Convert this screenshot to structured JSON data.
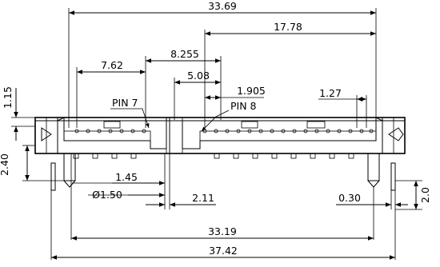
{
  "dimensions": {
    "overall_top": "33.69",
    "right_span": "17.78",
    "left_span": "7.62",
    "center_span": "8.255",
    "mid_span": "5.08",
    "pitch_1905": "1.905",
    "pitch_127": "1.27",
    "height_115": "1.15",
    "height_240": "2.40",
    "offset_145": "1.45",
    "hole_dia": "Ø1.50",
    "offset_211": "2.11",
    "gap_030": "0.30",
    "height_20": "2.0",
    "pin_span_bottom": "33.19",
    "overall_bottom": "37.42"
  },
  "labels": {
    "pin7": "PIN  7",
    "pin8": "PIN  8"
  }
}
